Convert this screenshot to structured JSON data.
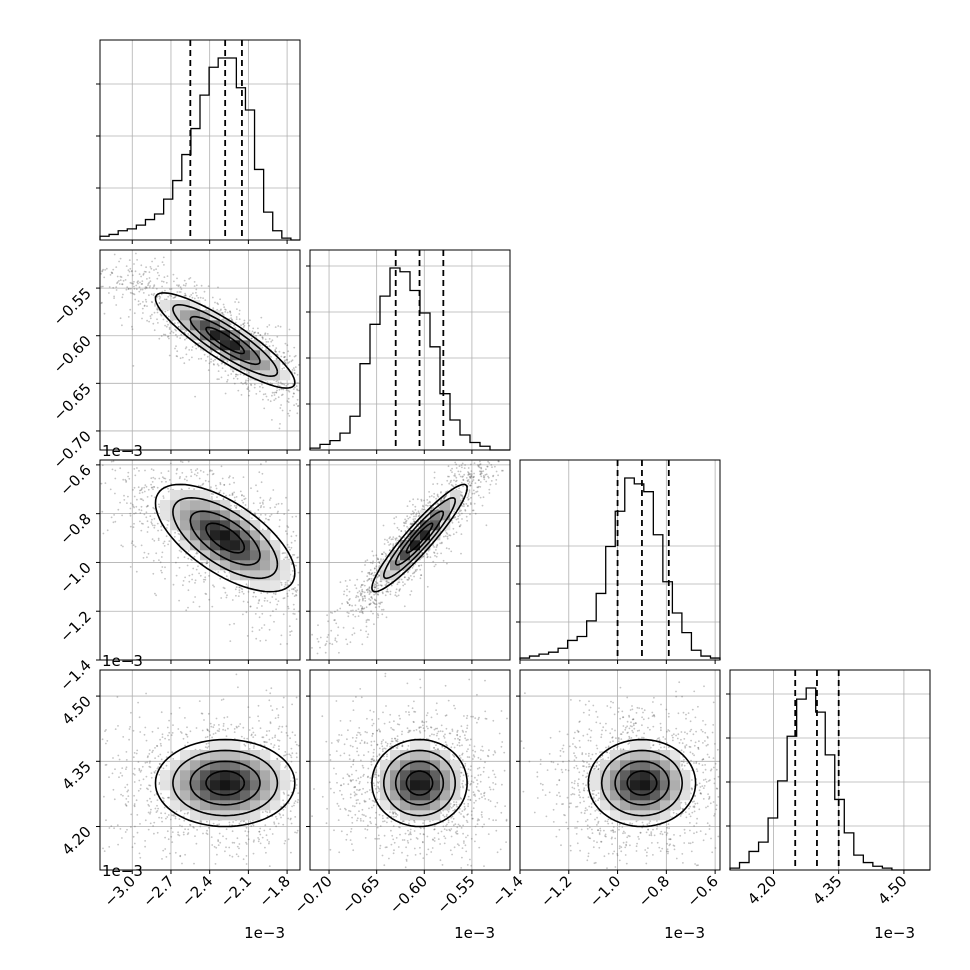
{
  "figure": {
    "type": "corner-plot",
    "background": "#ffffff",
    "colors": {
      "line": "#000000",
      "grid": "#b0b0b0",
      "points": "#555555"
    }
  },
  "chart_data": {
    "type": "corner",
    "n_params": 4,
    "params": [
      {
        "range": [
          -0.00325,
          -0.0017
        ],
        "ticks": [
          -0.003,
          -0.0027,
          -0.0024,
          -0.0021,
          -0.0018
        ],
        "tick_labels": [
          "−3.0",
          "−2.7",
          "−2.4",
          "−2.1",
          "−1.8"
        ],
        "offset": "1e−3",
        "median": -0.00228,
        "q16": -0.00255,
        "q84": -0.00215,
        "hist_counts": [
          2,
          3,
          5,
          6,
          8,
          11,
          14,
          22,
          32,
          46,
          60,
          78,
          93,
          98,
          98,
          82,
          70,
          38,
          15,
          5,
          1,
          0
        ],
        "hist_ticks": [
          0.26,
          0.52,
          0.78
        ]
      },
      {
        "range": [
          -0.00072,
          -0.00051
        ],
        "ticks": [
          -0.0007,
          -0.00065,
          -0.0006,
          -0.00055
        ],
        "tick_labels": [
          "−0.70",
          "−0.65",
          "−0.60",
          "−0.55"
        ],
        "offset": "1e−3",
        "median": -0.000605,
        "q16": -0.00063,
        "q84": -0.00058,
        "hist_counts": [
          1,
          3,
          5,
          9,
          18,
          46,
          67,
          82,
          97,
          95,
          85,
          73,
          55,
          30,
          16,
          8,
          4,
          2,
          0,
          0
        ],
        "hist_ticks": [
          0.23,
          0.46,
          0.69,
          0.92
        ]
      },
      {
        "range": [
          -0.0014,
          -0.00058
        ],
        "ticks": [
          -0.0014,
          -0.0012,
          -0.001,
          -0.0008,
          -0.0006
        ],
        "tick_labels": [
          "−1.4",
          "−1.2",
          "−1.0",
          "−0.8",
          "−0.6"
        ],
        "offset": "1e−3",
        "median": -0.0009,
        "q16": -0.001,
        "q84": -0.00079,
        "hist_counts": [
          1,
          2,
          3,
          4,
          6,
          10,
          12,
          20,
          34,
          58,
          76,
          93,
          90,
          86,
          64,
          40,
          24,
          14,
          5,
          2,
          1
        ],
        "hist_ticks": [
          0.19,
          0.38,
          0.57
        ]
      },
      {
        "range": [
          0.0041,
          0.00456
        ],
        "ticks": [
          0.0042,
          0.00435,
          0.0045
        ],
        "tick_labels": [
          "4.20",
          "4.35",
          "4.50"
        ],
        "offset": "1e−3",
        "median": 0.0043,
        "q16": 0.00425,
        "q84": 0.00435,
        "hist_counts": [
          1,
          4,
          10,
          15,
          28,
          48,
          72,
          92,
          98,
          85,
          62,
          38,
          20,
          8,
          4,
          2,
          1,
          0,
          0,
          0,
          0
        ],
        "hist_ticks": [
          0.22,
          0.44,
          0.66,
          0.88
        ]
      }
    ],
    "correlations": {
      "0-1": -0.88,
      "0-2": -0.65,
      "1-2": 0.93,
      "0-3": 0.0,
      "1-3": 0.0,
      "2-3": 0.0
    },
    "grid": true,
    "legend": "none"
  }
}
